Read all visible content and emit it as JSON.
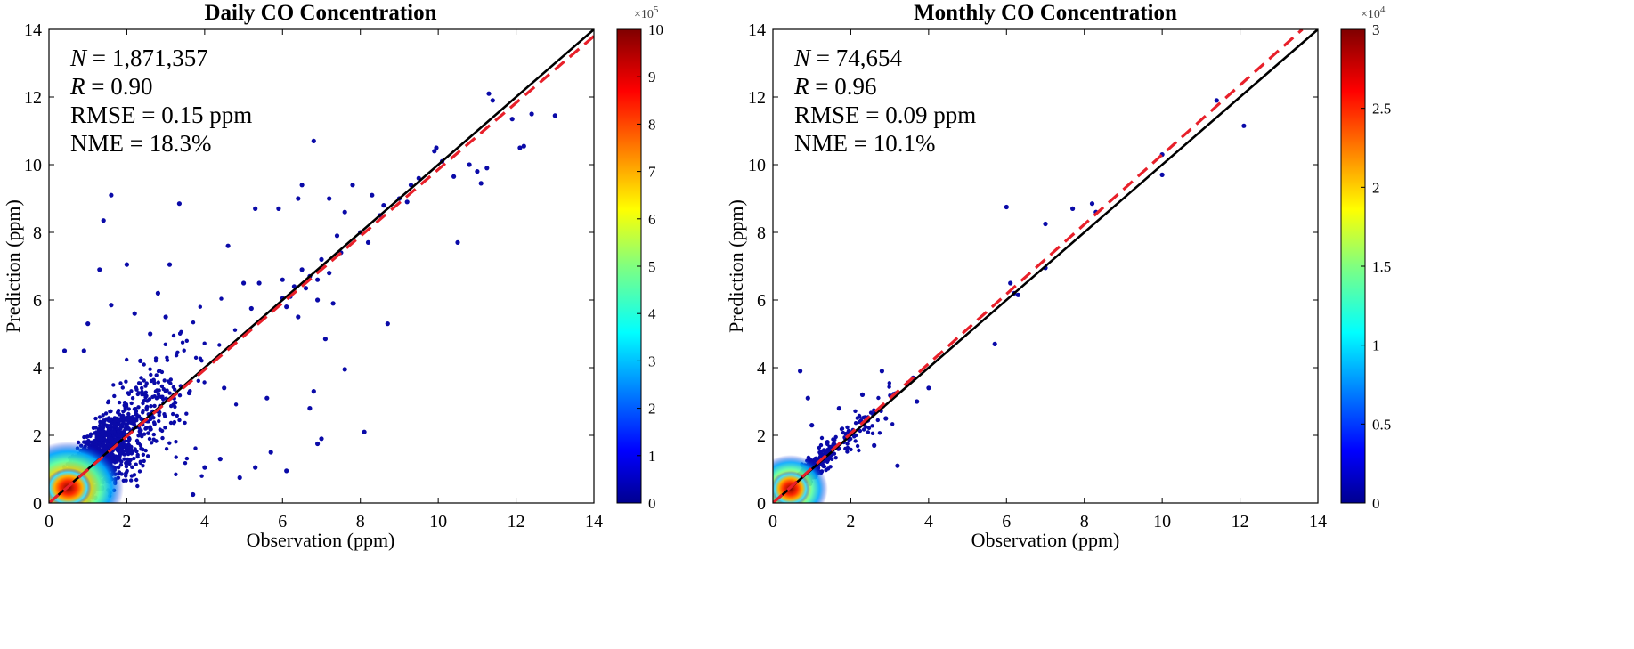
{
  "chart_data": [
    {
      "type": "scatter",
      "title": "Daily CO Concentration",
      "xlabel": "Observation (ppm)",
      "ylabel": "Prediction (ppm)",
      "xlim": [
        0,
        14
      ],
      "ylim": [
        0,
        14
      ],
      "xticks": [
        "0",
        "2",
        "4",
        "6",
        "8",
        "10",
        "12",
        "14"
      ],
      "yticks": [
        "0",
        "2",
        "4",
        "6",
        "8",
        "10",
        "12",
        "14"
      ],
      "stats": {
        "n": "1,871,357",
        "r": "0.90",
        "rmse": "0.15 ppm",
        "nme": "18.3%"
      },
      "lines": [
        {
          "name": "1:1 line",
          "color": "#000000",
          "style": "solid",
          "x": [
            0,
            14
          ],
          "y": [
            0,
            14
          ]
        },
        {
          "name": "fit",
          "color": "#e8202a",
          "style": "dashed",
          "x": [
            0,
            14
          ],
          "y": [
            0.0,
            13.8
          ]
        }
      ],
      "colorbar": {
        "min": 0,
        "max": 10,
        "multiplier_base": "×10",
        "multiplier_exp": "5",
        "ticks": [
          "0",
          "1",
          "2",
          "3",
          "4",
          "5",
          "6",
          "7",
          "8",
          "9",
          "10"
        ]
      },
      "colormap": "jet",
      "outliers": [
        [
          1.4,
          8.35
        ],
        [
          1.6,
          9.1
        ],
        [
          3.35,
          8.85
        ],
        [
          2.0,
          7.05
        ],
        [
          3.1,
          7.05
        ],
        [
          1.3,
          6.9
        ],
        [
          2.8,
          6.2
        ],
        [
          1.6,
          5.85
        ],
        [
          2.2,
          5.6
        ],
        [
          3.0,
          5.5
        ],
        [
          4.6,
          7.6
        ],
        [
          5.3,
          8.7
        ],
        [
          5.9,
          8.7
        ],
        [
          6.5,
          9.4
        ],
        [
          6.4,
          9.0
        ],
        [
          6.8,
          10.7
        ],
        [
          7.2,
          9.0
        ],
        [
          7.6,
          8.6
        ],
        [
          7.8,
          9.4
        ],
        [
          8.3,
          9.1
        ],
        [
          8.6,
          8.8
        ],
        [
          9.2,
          8.9
        ],
        [
          9.5,
          9.6
        ],
        [
          9.9,
          10.4
        ],
        [
          9.95,
          10.5
        ],
        [
          10.1,
          10.1
        ],
        [
          10.5,
          7.7
        ],
        [
          10.4,
          9.65
        ],
        [
          10.8,
          10.0
        ],
        [
          11.0,
          9.8
        ],
        [
          11.1,
          9.45
        ],
        [
          11.3,
          12.1
        ],
        [
          11.4,
          11.9
        ],
        [
          11.25,
          9.9
        ],
        [
          11.9,
          11.35
        ],
        [
          12.1,
          10.5
        ],
        [
          12.2,
          10.55
        ],
        [
          12.4,
          11.5
        ],
        [
          13.0,
          11.45
        ],
        [
          5.2,
          5.75
        ],
        [
          5.0,
          6.5
        ],
        [
          5.4,
          6.5
        ],
        [
          6.9,
          6.0
        ],
        [
          7.3,
          5.9
        ],
        [
          8.7,
          5.3
        ],
        [
          7.1,
          4.85
        ],
        [
          7.6,
          3.95
        ],
        [
          6.8,
          3.3
        ],
        [
          6.7,
          2.8
        ],
        [
          5.6,
          3.1
        ],
        [
          5.7,
          1.5
        ],
        [
          5.3,
          1.05
        ],
        [
          4.4,
          1.3
        ],
        [
          4.9,
          0.75
        ],
        [
          7.0,
          1.9
        ],
        [
          6.9,
          1.75
        ],
        [
          8.1,
          2.1
        ],
        [
          3.6,
          3.25
        ],
        [
          4.5,
          3.4
        ],
        [
          3.7,
          0.25
        ],
        [
          4.0,
          1.05
        ],
        [
          6.1,
          0.95
        ],
        [
          2.6,
          5.0
        ],
        [
          1.0,
          5.3
        ],
        [
          0.4,
          4.5
        ],
        [
          0.9,
          4.5
        ],
        [
          2.35,
          4.2
        ],
        [
          6.0,
          6.05
        ],
        [
          6.3,
          6.4
        ],
        [
          6.7,
          6.7
        ],
        [
          6.5,
          6.9
        ],
        [
          6.2,
          6.1
        ],
        [
          7.0,
          7.2
        ],
        [
          7.5,
          7.4
        ],
        [
          8.0,
          8.0
        ],
        [
          8.2,
          7.7
        ],
        [
          8.5,
          8.5
        ],
        [
          9.0,
          9.0
        ],
        [
          9.3,
          9.4
        ],
        [
          7.4,
          7.9
        ],
        [
          6.6,
          6.35
        ],
        [
          6.9,
          6.6
        ],
        [
          6.1,
          5.8
        ],
        [
          7.2,
          6.8
        ],
        [
          6.0,
          6.6
        ],
        [
          6.4,
          5.5
        ]
      ]
    },
    {
      "type": "scatter",
      "title": "Monthly CO Concentration",
      "xlabel": "Observation (ppm)",
      "ylabel": "Prediction (ppm)",
      "xlim": [
        0,
        14
      ],
      "ylim": [
        0,
        14
      ],
      "xticks": [
        "0",
        "2",
        "4",
        "6",
        "8",
        "10",
        "12",
        "14"
      ],
      "yticks": [
        "0",
        "2",
        "4",
        "6",
        "8",
        "10",
        "12",
        "14"
      ],
      "stats": {
        "n": "74,654",
        "r": "0.96",
        "rmse": "0.09 ppm",
        "nme": "10.1%"
      },
      "lines": [
        {
          "name": "1:1 line",
          "color": "#000000",
          "style": "solid",
          "x": [
            0,
            14
          ],
          "y": [
            0,
            14
          ]
        },
        {
          "name": "fit",
          "color": "#e8202a",
          "style": "dashed",
          "x": [
            0,
            13.6
          ],
          "y": [
            0.0,
            14.0
          ]
        }
      ],
      "colorbar": {
        "min": 0,
        "max": 3,
        "multiplier_base": "×10",
        "multiplier_exp": "4",
        "ticks": [
          "0",
          "0.5",
          "1",
          "1.5",
          "2",
          "2.5",
          "3"
        ]
      },
      "colormap": "jet",
      "outliers": [
        [
          6.0,
          8.75
        ],
        [
          7.0,
          8.25
        ],
        [
          7.7,
          8.7
        ],
        [
          8.2,
          8.85
        ],
        [
          8.3,
          8.6
        ],
        [
          10.0,
          10.3
        ],
        [
          10.0,
          9.7
        ],
        [
          11.4,
          11.9
        ],
        [
          12.1,
          11.15
        ],
        [
          5.7,
          4.7
        ],
        [
          6.1,
          6.5
        ],
        [
          6.3,
          6.15
        ],
        [
          6.2,
          6.2
        ],
        [
          7.0,
          6.95
        ],
        [
          0.7,
          3.9
        ],
        [
          0.9,
          3.1
        ],
        [
          3.2,
          1.1
        ],
        [
          2.8,
          3.9
        ],
        [
          3.6,
          3.7
        ],
        [
          4.0,
          3.4
        ],
        [
          3.7,
          3.0
        ],
        [
          2.3,
          3.2
        ],
        [
          1.0,
          2.3
        ],
        [
          1.7,
          2.8
        ],
        [
          2.6,
          1.7
        ],
        [
          1.4,
          1.8
        ],
        [
          2.9,
          2.5
        ]
      ]
    }
  ]
}
